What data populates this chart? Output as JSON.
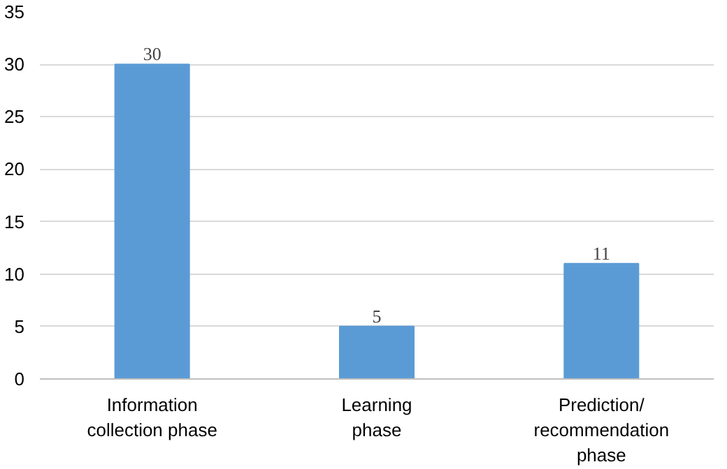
{
  "chart_data": {
    "type": "bar",
    "categories": [
      "Information\ncollection phase",
      "Learning\nphase",
      "Prediction/\nrecommendation\nphase"
    ],
    "values": [
      30,
      5,
      11
    ],
    "color": "#5b9bd5",
    "ylim": [
      0,
      35
    ],
    "yticks": [
      0,
      5,
      10,
      15,
      20,
      25,
      30,
      35
    ],
    "grid": "y",
    "data_labels": true
  }
}
